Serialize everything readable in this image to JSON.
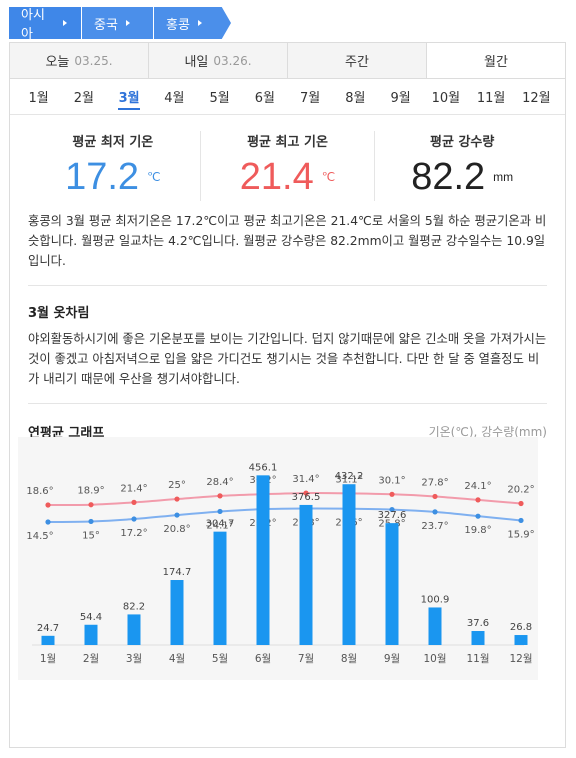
{
  "breadcrumb": [
    "아시아",
    "중국",
    "홍콩"
  ],
  "period_tabs": [
    {
      "label": "오늘",
      "date": "03.25."
    },
    {
      "label": "내일",
      "date": "03.26."
    },
    {
      "label": "주간",
      "date": ""
    },
    {
      "label": "월간",
      "date": ""
    }
  ],
  "months": [
    "1월",
    "2월",
    "3월",
    "4월",
    "5월",
    "6월",
    "7월",
    "8월",
    "9월",
    "10월",
    "11월",
    "12월"
  ],
  "active_month": "3월",
  "summary": {
    "min": {
      "title": "평균 최저 기온",
      "value": "17.2",
      "unit": "℃"
    },
    "max": {
      "title": "평균 최고 기온",
      "value": "21.4",
      "unit": "℃"
    },
    "rain": {
      "title": "평균 강수량",
      "value": "82.2",
      "unit": "mm"
    }
  },
  "description": "홍콩의 3월 평균 최저기온은 17.2℃이고 평균 최고기온은 21.4℃로 서울의 5월 하순 평균기온과 비슷합니다. 월평균 일교차는 4.2℃입니다. 월평균 강수량은 82.2mm이고 월평균 강수일수는 10.9일입니다.",
  "clothing": {
    "title": "3월 옷차림",
    "text": "야외활동하시기에 좋은 기온분포를 보이는 기간입니다. 덥지 않기때문에 얇은 긴소매 옷을 가져가시는 것이 좋겠고 아침저녁으로 입을 얇은 가디건도 챙기시는 것을 추천합니다. 다만 한 달 중 열흘정도 비가 내리기 때문에 우산을 챙기셔야합니다."
  },
  "graph": {
    "title": "연평균 그래프",
    "units": "기온(℃), 강수량(mm)"
  },
  "colors": {
    "max_line": "#f29bab",
    "min_line": "#7fb0f0",
    "bars": "#1a96f0"
  },
  "chart_data": {
    "type": "bar+line",
    "categories": [
      "1월",
      "2월",
      "3월",
      "4월",
      "5월",
      "6월",
      "7월",
      "8월",
      "9월",
      "10월",
      "11월",
      "12월"
    ],
    "series": [
      {
        "name": "평균 최고 기온",
        "type": "line",
        "unit": "°",
        "values": [
          18.6,
          18.9,
          21.4,
          25,
          28.4,
          30.2,
          31.4,
          31.1,
          30.1,
          27.8,
          24.1,
          20.2
        ]
      },
      {
        "name": "평균 최저 기온",
        "type": "line",
        "unit": "°",
        "values": [
          14.5,
          15,
          17.2,
          20.8,
          24.1,
          26.2,
          26.8,
          26.6,
          25.8,
          23.7,
          19.8,
          15.9
        ]
      },
      {
        "name": "평균 강수량",
        "type": "bar",
        "unit": "mm",
        "values": [
          24.7,
          54.4,
          82.2,
          174.7,
          304.7,
          456.1,
          376.5,
          432.2,
          327.6,
          100.9,
          37.6,
          26.8
        ]
      }
    ]
  }
}
